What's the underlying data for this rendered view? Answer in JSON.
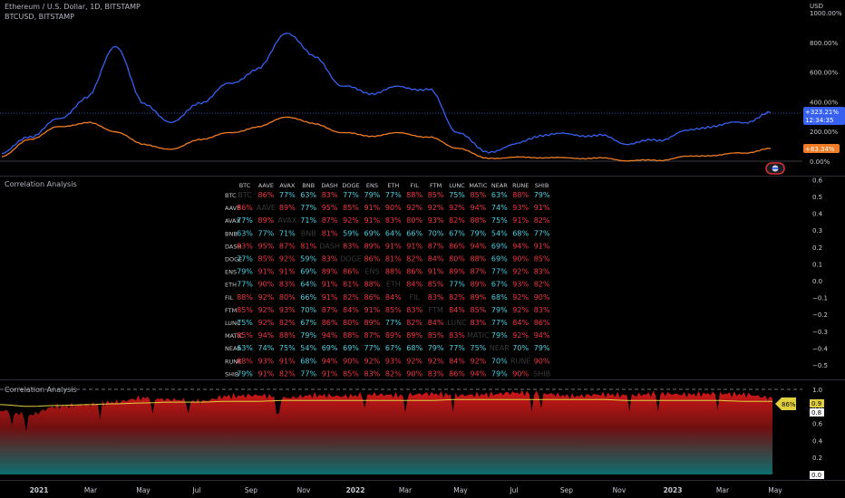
{
  "header": {
    "main_title": "Ethereum / U.S. Dollar, 1D, BITSTAMP",
    "compare_title": "BTCUSD, BITSTAMP",
    "currency": "USD"
  },
  "price_pane": {
    "axis_labels": [
      "1000.00%",
      "800.00%",
      "600.00%",
      "400.00%",
      "200.00%",
      "0.00%"
    ],
    "badge_eth_line1": "+323.21%",
    "badge_eth_line2": "12:34:35",
    "badge_btc": "+83.34%"
  },
  "table_pane": {
    "title": "Correlation Analysis",
    "axis_labels": [
      "0.6",
      "0.5",
      "0.4",
      "0.3",
      "0.2",
      "0.1",
      "0.0",
      "−0.1",
      "−0.2",
      "−0.3",
      "−0.4",
      "−0.5"
    ]
  },
  "bottom_pane": {
    "title": "Correlation Analysis",
    "axis_labels": [
      "1.0",
      "0.8",
      "0.6",
      "0.4",
      "0.2",
      "0.0"
    ],
    "badge_mean": "86%",
    "badge_top": "0.9",
    "badge_mid": "0.8",
    "badge_bottom": "0.0"
  },
  "time_axis": [
    "2021",
    "Mar",
    "May",
    "Jul",
    "Sep",
    "Nov",
    "2022",
    "Mar",
    "May",
    "Jul",
    "Sep",
    "Nov",
    "2023",
    "Mar",
    "May"
  ],
  "colors": {
    "eth": "#3860f0",
    "btc": "#f07c26",
    "high": "#f23645",
    "mid": "#4dd0e1",
    "diag": "#3a3a3a",
    "mean": "#e0d040"
  },
  "chart_data": [
    {
      "type": "line",
      "title": "Ethereum / U.S. Dollar, 1D, BITSTAMP",
      "x": [
        "2021-01",
        "2021-02",
        "2021-03",
        "2021-04",
        "2021-05",
        "2021-06",
        "2021-07",
        "2021-08",
        "2021-09",
        "2021-10",
        "2021-11",
        "2021-12",
        "2022-01",
        "2022-02",
        "2022-03",
        "2022-04",
        "2022-05",
        "2022-06",
        "2022-07",
        "2022-08",
        "2022-09",
        "2022-10",
        "2022-11",
        "2022-12",
        "2023-01",
        "2023-02",
        "2023-03",
        "2023-04"
      ],
      "series": [
        {
          "name": "Ethereum / U.S. Dollar",
          "values": [
            50,
            170,
            280,
            430,
            780,
            380,
            260,
            400,
            520,
            620,
            870,
            700,
            500,
            460,
            500,
            480,
            200,
            60,
            110,
            180,
            180,
            170,
            120,
            140,
            200,
            240,
            260,
            323.21
          ]
        },
        {
          "name": "BTCUSD",
          "values": [
            30,
            150,
            230,
            260,
            200,
            110,
            80,
            150,
            190,
            230,
            300,
            250,
            190,
            170,
            190,
            160,
            90,
            20,
            25,
            25,
            20,
            20,
            5,
            5,
            30,
            40,
            55,
            83.34
          ]
        }
      ],
      "ylabel": "USD",
      "ylim": [
        0,
        1000
      ]
    },
    {
      "type": "table",
      "title": "Correlation Analysis",
      "columns": [
        "BTC",
        "AAVE",
        "AVAX",
        "BNB",
        "DASH",
        "DOGE",
        "ENS",
        "ETH",
        "FIL",
        "FTM",
        "LUNC",
        "MATIC",
        "NEAR",
        "RUNE",
        "SHIB"
      ],
      "rows": [
        [
          "BTC",
          "86%",
          "77%",
          "63%",
          "83%",
          "77%",
          "79%",
          "77%",
          "88%",
          "85%",
          "75%",
          "85%",
          "63%",
          "88%",
          "79%"
        ],
        [
          "86%",
          "AAVE",
          "89%",
          "77%",
          "95%",
          "85%",
          "91%",
          "90%",
          "92%",
          "92%",
          "92%",
          "94%",
          "74%",
          "93%",
          "91%"
        ],
        [
          "77%",
          "89%",
          "AVAX",
          "71%",
          "87%",
          "92%",
          "91%",
          "83%",
          "80%",
          "93%",
          "82%",
          "88%",
          "75%",
          "91%",
          "82%"
        ],
        [
          "63%",
          "77%",
          "71%",
          "BNB",
          "81%",
          "59%",
          "69%",
          "64%",
          "66%",
          "70%",
          "67%",
          "79%",
          "54%",
          "68%",
          "77%"
        ],
        [
          "83%",
          "95%",
          "87%",
          "81%",
          "DASH",
          "83%",
          "89%",
          "91%",
          "91%",
          "87%",
          "86%",
          "94%",
          "69%",
          "94%",
          "91%"
        ],
        [
          "77%",
          "85%",
          "92%",
          "59%",
          "83%",
          "DOGE",
          "86%",
          "81%",
          "82%",
          "84%",
          "80%",
          "88%",
          "69%",
          "90%",
          "85%"
        ],
        [
          "79%",
          "91%",
          "91%",
          "69%",
          "89%",
          "86%",
          "ENS",
          "88%",
          "86%",
          "91%",
          "89%",
          "87%",
          "77%",
          "92%",
          "83%"
        ],
        [
          "77%",
          "90%",
          "83%",
          "64%",
          "91%",
          "81%",
          "88%",
          "ETH",
          "84%",
          "85%",
          "77%",
          "89%",
          "67%",
          "93%",
          "82%"
        ],
        [
          "88%",
          "92%",
          "80%",
          "66%",
          "91%",
          "82%",
          "86%",
          "84%",
          "FIL",
          "83%",
          "82%",
          "89%",
          "68%",
          "92%",
          "90%"
        ],
        [
          "85%",
          "92%",
          "93%",
          "70%",
          "87%",
          "84%",
          "91%",
          "85%",
          "83%",
          "FTM",
          "84%",
          "85%",
          "79%",
          "92%",
          "83%"
        ],
        [
          "75%",
          "92%",
          "82%",
          "67%",
          "86%",
          "80%",
          "89%",
          "77%",
          "82%",
          "84%",
          "LUNC",
          "83%",
          "77%",
          "84%",
          "86%"
        ],
        [
          "85%",
          "94%",
          "88%",
          "79%",
          "94%",
          "88%",
          "87%",
          "89%",
          "89%",
          "85%",
          "83%",
          "MATIC",
          "79%",
          "92%",
          "94%"
        ],
        [
          "63%",
          "74%",
          "75%",
          "54%",
          "69%",
          "69%",
          "77%",
          "67%",
          "68%",
          "79%",
          "77%",
          "75%",
          "NEAR",
          "70%",
          "79%"
        ],
        [
          "88%",
          "93%",
          "91%",
          "68%",
          "94%",
          "90%",
          "92%",
          "93%",
          "92%",
          "92%",
          "84%",
          "92%",
          "70%",
          "RUNE",
          "90%"
        ],
        [
          "79%",
          "91%",
          "82%",
          "77%",
          "91%",
          "85%",
          "83%",
          "82%",
          "90%",
          "83%",
          "86%",
          "94%",
          "79%",
          "90%",
          "SHIB"
        ]
      ]
    },
    {
      "type": "area",
      "title": "Correlation Analysis",
      "x": [
        "2021-01",
        "2021-02",
        "2021-03",
        "2021-04",
        "2021-05",
        "2021-06",
        "2021-07",
        "2021-08",
        "2021-09",
        "2021-10",
        "2021-11",
        "2021-12",
        "2022-01",
        "2022-02",
        "2022-03",
        "2022-04",
        "2022-05",
        "2022-06",
        "2022-07",
        "2022-08",
        "2022-09",
        "2022-10",
        "2022-11",
        "2022-12",
        "2023-01",
        "2023-02",
        "2023-03",
        "2023-04"
      ],
      "series": [
        {
          "values": [
            0.75,
            0.7,
            0.8,
            0.82,
            0.85,
            0.9,
            0.88,
            0.86,
            0.92,
            0.93,
            0.9,
            0.93,
            0.92,
            0.94,
            0.93,
            0.95,
            0.93,
            0.94,
            0.96,
            0.95,
            0.92,
            0.94,
            0.93,
            0.95,
            0.94,
            0.95,
            0.94,
            0.9
          ]
        },
        {
          "values": [
            0.82,
            0.8,
            0.81,
            0.82,
            0.83,
            0.84,
            0.85,
            0.85,
            0.86,
            0.86,
            0.87,
            0.87,
            0.87,
            0.87,
            0.87,
            0.87,
            0.88,
            0.88,
            0.88,
            0.88,
            0.88,
            0.88,
            0.87,
            0.87,
            0.87,
            0.87,
            0.86,
            0.86
          ]
        }
      ],
      "ylim": [
        0,
        1.0
      ]
    }
  ]
}
